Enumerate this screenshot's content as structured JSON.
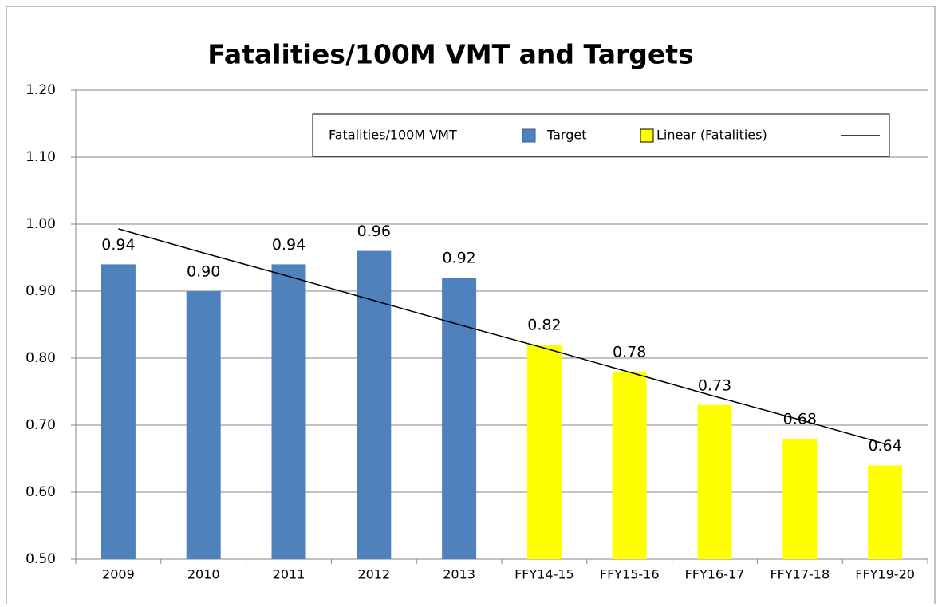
{
  "chart_data": {
    "type": "bar",
    "title": "Fatalities/100M VMT and Targets",
    "categories": [
      "2009",
      "2010",
      "2011",
      "2012",
      "2013",
      "FFY14-15",
      "FFY15-16",
      "FFY16-17",
      "FFY17-18",
      "FFY19-20"
    ],
    "series": [
      {
        "name": "Fatalities/100M VMT",
        "color": "#4f81bd",
        "values": [
          0.94,
          0.9,
          0.94,
          0.96,
          0.92,
          null,
          null,
          null,
          null,
          null
        ],
        "value_labels": [
          "0.94",
          "0.90",
          "0.94",
          "0.96",
          "0.92",
          null,
          null,
          null,
          null,
          null
        ]
      },
      {
        "name": "Target",
        "color": "#ffff00",
        "values": [
          null,
          null,
          null,
          null,
          null,
          0.82,
          0.78,
          0.73,
          0.68,
          0.64
        ],
        "value_labels": [
          null,
          null,
          null,
          null,
          null,
          "0.82",
          "0.78",
          "0.73",
          "0.68",
          "0.64"
        ]
      }
    ],
    "trendline": {
      "name": "Linear (Fatalities)",
      "color": "#000000",
      "values": [
        0.993,
        0.957,
        0.922,
        0.886,
        0.85,
        0.815,
        0.779,
        0.743,
        0.708,
        0.672
      ]
    },
    "ylim": [
      0.5,
      1.2
    ],
    "yticks": [
      {
        "value": 0.5,
        "label": "0.50"
      },
      {
        "value": 0.6,
        "label": "0.60"
      },
      {
        "value": 0.7,
        "label": "0.70"
      },
      {
        "value": 0.8,
        "label": "0.80"
      },
      {
        "value": 0.9,
        "label": "0.90"
      },
      {
        "value": 1.0,
        "label": "1.00"
      },
      {
        "value": 1.1,
        "label": "1.10"
      },
      {
        "value": 1.2,
        "label": "1.20"
      }
    ],
    "grid": true
  }
}
